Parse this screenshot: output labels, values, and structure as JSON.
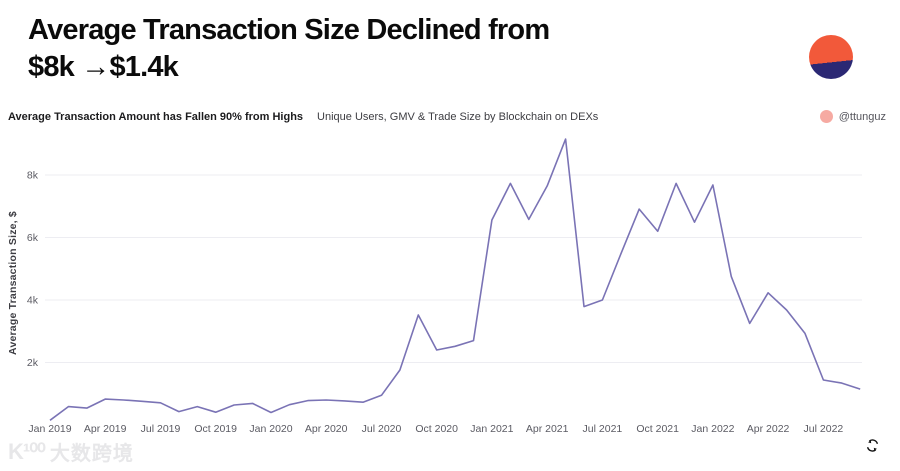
{
  "header": {
    "title_line1": "Average Transaction Size Declined from",
    "title_line2": "$8k →$1.4k",
    "logo_orange": "#f2593a",
    "logo_navy": "#2b2874"
  },
  "subheader": {
    "subtitle_bold": "Average Transaction Amount has Fallen 90% from Highs",
    "subtitle_regular": "Unique Users, GMV & Trade Size by Blockchain on DEXs",
    "attribution": "@ttunguz",
    "attribution_dot_color": "#f6aaa2"
  },
  "chart_data": {
    "type": "line",
    "title": "",
    "xlabel": "",
    "ylabel": "Average Transaction Size, $",
    "line_color": "#7a73b5",
    "grid_color": "#ededf2",
    "ylim": [
      0,
      9300
    ],
    "legend": "none",
    "grid": "horizontal",
    "y_ticks": [
      {
        "value": 2000,
        "label": "2k"
      },
      {
        "value": 4000,
        "label": "4k"
      },
      {
        "value": 6000,
        "label": "6k"
      },
      {
        "value": 8000,
        "label": "8k"
      }
    ],
    "x_tick_every": 3,
    "categories": [
      "Jan 2019",
      "Feb 2019",
      "Mar 2019",
      "Apr 2019",
      "May 2019",
      "Jun 2019",
      "Jul 2019",
      "Aug 2019",
      "Sep 2019",
      "Oct 2019",
      "Nov 2019",
      "Dec 2019",
      "Jan 2020",
      "Feb 2020",
      "Mar 2020",
      "Apr 2020",
      "May 2020",
      "Jun 2020",
      "Jul 2020",
      "Aug 2020",
      "Sep 2020",
      "Oct 2020",
      "Nov 2020",
      "Dec 2020",
      "Jan 2021",
      "Feb 2021",
      "Mar 2021",
      "Apr 2021",
      "May 2021",
      "Jun 2021",
      "Jul 2021",
      "Aug 2021",
      "Sep 2021",
      "Oct 2021",
      "Nov 2021",
      "Dec 2021",
      "Jan 2022",
      "Feb 2022",
      "Mar 2022",
      "Apr 2022",
      "May 2022",
      "Jun 2022",
      "Jul 2022",
      "Aug 2022",
      "Sep 2022"
    ],
    "values": [
      150,
      590,
      540,
      830,
      800,
      760,
      710,
      430,
      590,
      410,
      640,
      690,
      400,
      650,
      780,
      800,
      770,
      730,
      950,
      1760,
      3520,
      2400,
      2520,
      2700,
      6560,
      7730,
      6580,
      7650,
      9150,
      3790,
      4000,
      5470,
      6910,
      6200,
      7730,
      6490,
      7680,
      4750,
      3250,
      4230,
      3680,
      2930,
      1440,
      1340,
      1150
    ]
  },
  "footer": {
    "watermark_logo": "K¹⁰⁰",
    "watermark_text": "大数跨境"
  }
}
